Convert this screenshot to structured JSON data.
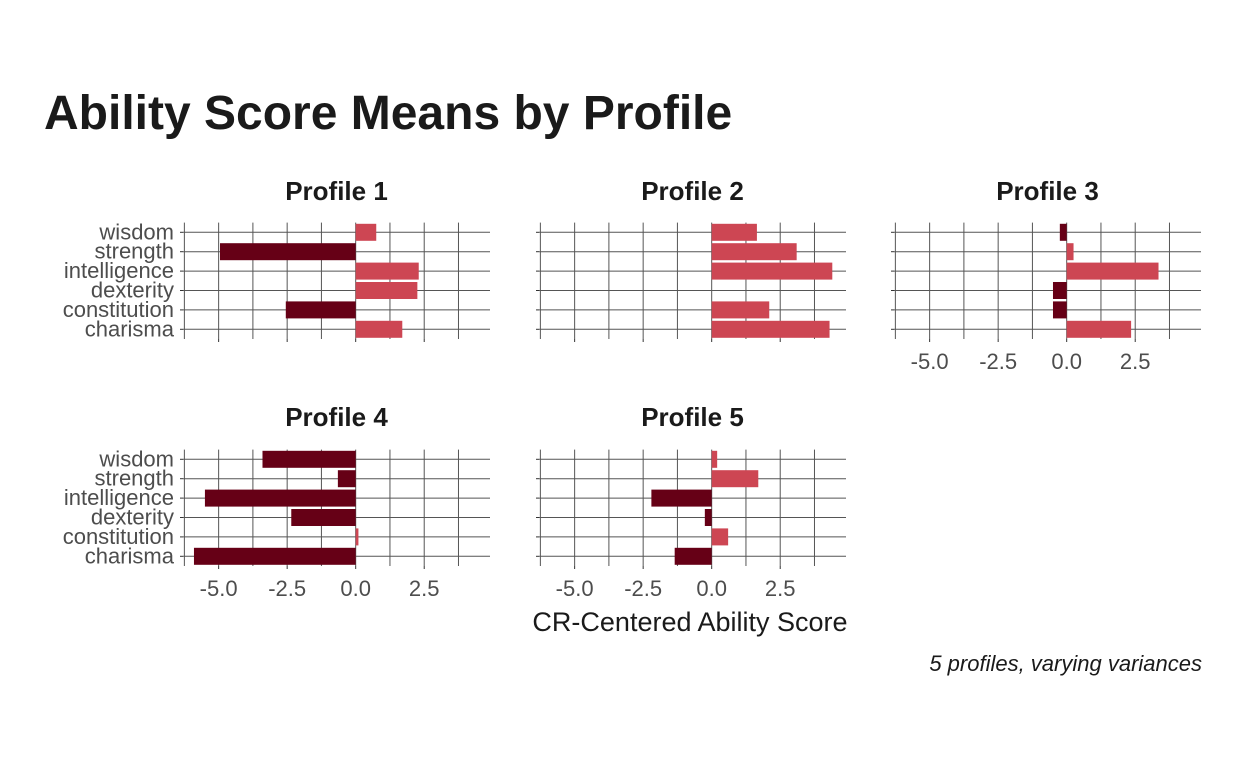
{
  "chart_data": {
    "type": "bar",
    "orientation": "horizontal",
    "title": "Ability Score Means by Profile",
    "xlabel": "CR-Centered Ability Score",
    "caption": "5 profiles, varying variances",
    "categories": [
      "charisma",
      "constitution",
      "dexterity",
      "intelligence",
      "strength",
      "wisdom"
    ],
    "xlim": [
      -6.3,
      4.9
    ],
    "xticks": [
      -5.0,
      -2.5,
      0.0,
      2.5
    ],
    "xtick_labels": [
      "-5.0",
      "-2.5",
      "0.0",
      "2.5"
    ],
    "colors": {
      "positive": "#cd4653",
      "negative": "#660016"
    },
    "panels": [
      {
        "title": "Profile 1",
        "values": {
          "wisdom": 0.75,
          "strength": -4.95,
          "intelligence": 2.3,
          "dexterity": 2.25,
          "constitution": -2.55,
          "charisma": 1.7
        }
      },
      {
        "title": "Profile 2",
        "values": {
          "wisdom": 1.65,
          "strength": 3.1,
          "intelligence": 4.4,
          "dexterity": 0.0,
          "constitution": 2.1,
          "charisma": 4.3
        }
      },
      {
        "title": "Profile 3",
        "values": {
          "wisdom": -0.25,
          "strength": 0.25,
          "intelligence": 3.35,
          "dexterity": -0.5,
          "constitution": -0.5,
          "charisma": 2.35
        }
      },
      {
        "title": "Profile 4",
        "values": {
          "wisdom": -3.4,
          "strength": -0.65,
          "intelligence": -5.5,
          "dexterity": -2.35,
          "constitution": 0.1,
          "charisma": -5.9
        }
      },
      {
        "title": "Profile 5",
        "values": {
          "wisdom": 0.2,
          "strength": 1.7,
          "intelligence": -2.2,
          "dexterity": -0.25,
          "constitution": 0.6,
          "charisma": -1.35
        }
      }
    ]
  }
}
